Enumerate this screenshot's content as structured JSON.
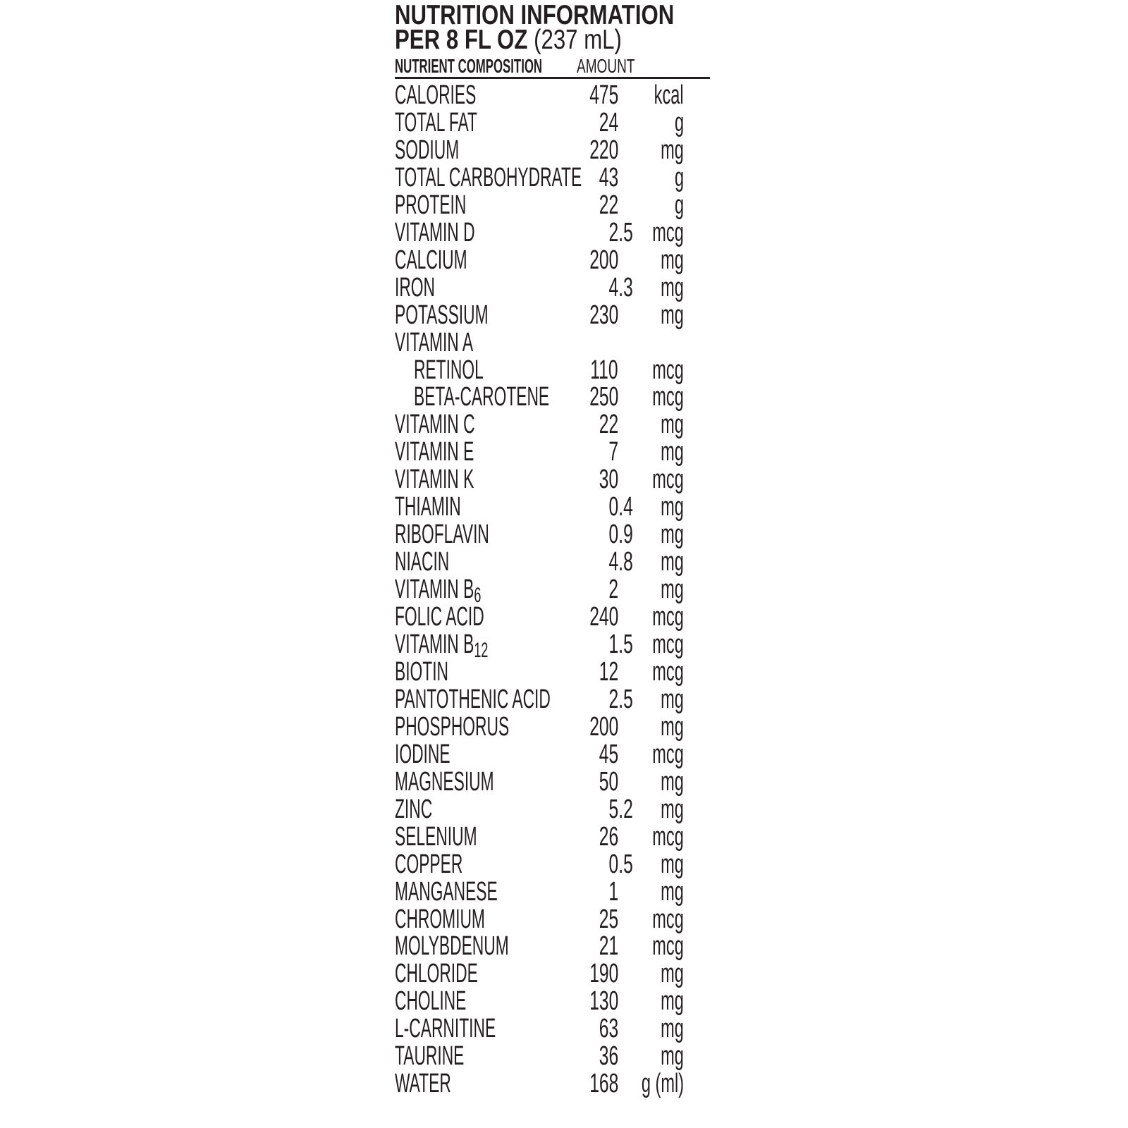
{
  "header": {
    "title": "NUTRITION INFORMATION",
    "serving_bold": "PER 8 FL OZ",
    "serving_volume": "(237 mL)",
    "col_nutrient": "NUTRIENT COMPOSITION",
    "col_amount": "AMOUNT"
  },
  "rows": [
    {
      "name": "CALORIES",
      "value": "475",
      "unit": "kcal"
    },
    {
      "name": "TOTAL FAT",
      "value": "24",
      "unit": "g"
    },
    {
      "name": "SODIUM",
      "value": "220",
      "unit": "mg"
    },
    {
      "name": "TOTAL CARBOHYDRATE",
      "value": "43",
      "unit": "g"
    },
    {
      "name": "PROTEIN",
      "value": "22",
      "unit": "g"
    },
    {
      "name": "VITAMIN D",
      "value": "2.5",
      "unit": "mcg"
    },
    {
      "name": "CALCIUM",
      "value": "200",
      "unit": "mg"
    },
    {
      "name": "IRON",
      "value": "4.3",
      "unit": "mg"
    },
    {
      "name": "POTASSIUM",
      "value": "230",
      "unit": "mg"
    },
    {
      "name": "VITAMIN A",
      "value": "",
      "unit": ""
    },
    {
      "name": "RETINOL",
      "value": "110",
      "unit": "mcg",
      "indent": true
    },
    {
      "name": "BETA-CAROTENE",
      "value": "250",
      "unit": "mcg",
      "indent": true
    },
    {
      "name": "VITAMIN C",
      "value": "22",
      "unit": "mg"
    },
    {
      "name": "VITAMIN E",
      "value": "7",
      "unit": "mg"
    },
    {
      "name": "VITAMIN K",
      "value": "30",
      "unit": "mcg"
    },
    {
      "name": "THIAMIN",
      "value": "0.4",
      "unit": "mg"
    },
    {
      "name": "RIBOFLAVIN",
      "value": "0.9",
      "unit": "mg"
    },
    {
      "name": "NIACIN",
      "value": "4.8",
      "unit": "mg"
    },
    {
      "name": "VITAMIN B",
      "sub": "6",
      "value": "2",
      "unit": "mg"
    },
    {
      "name": "FOLIC ACID",
      "value": "240",
      "unit": "mcg"
    },
    {
      "name": "VITAMIN B",
      "sub": "12",
      "value": "1.5",
      "unit": "mcg"
    },
    {
      "name": "BIOTIN",
      "value": "12",
      "unit": "mcg"
    },
    {
      "name": "PANTOTHENIC ACID",
      "value": "2.5",
      "unit": "mg"
    },
    {
      "name": "PHOSPHORUS",
      "value": "200",
      "unit": "mg"
    },
    {
      "name": "IODINE",
      "value": "45",
      "unit": "mcg"
    },
    {
      "name": "MAGNESIUM",
      "value": "50",
      "unit": "mg"
    },
    {
      "name": "ZINC",
      "value": "5.2",
      "unit": "mg"
    },
    {
      "name": "SELENIUM",
      "value": "26",
      "unit": "mcg"
    },
    {
      "name": "COPPER",
      "value": "0.5",
      "unit": "mg"
    },
    {
      "name": "MANGANESE",
      "value": "1",
      "unit": "mg"
    },
    {
      "name": "CHROMIUM",
      "value": "25",
      "unit": "mcg"
    },
    {
      "name": "MOLYBDENUM",
      "value": "21",
      "unit": "mcg"
    },
    {
      "name": "CHLORIDE",
      "value": "190",
      "unit": "mg"
    },
    {
      "name": "CHOLINE",
      "value": "130",
      "unit": "mg"
    },
    {
      "name": "L-CARNITINE",
      "value": "63",
      "unit": "mg"
    },
    {
      "name": "TAURINE",
      "value": "36",
      "unit": "mg"
    },
    {
      "name": "WATER",
      "value": "168",
      "unit": "g (ml)"
    }
  ]
}
